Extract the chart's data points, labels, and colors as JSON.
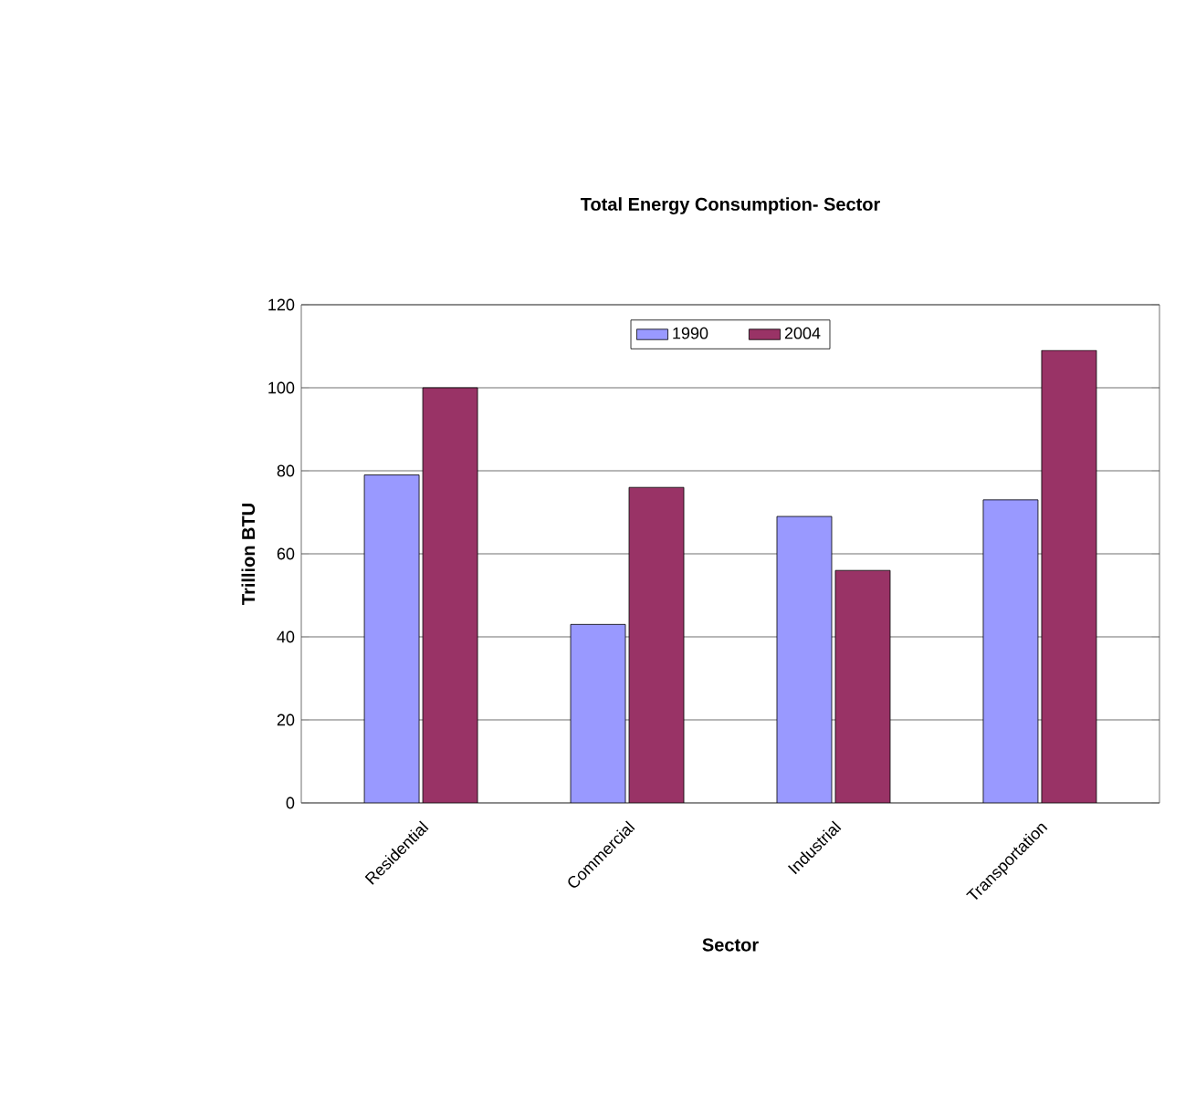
{
  "chart_data": {
    "type": "bar",
    "title": "Total Energy Consumption-  Sector",
    "xlabel": "Sector",
    "ylabel": "Trillion BTU",
    "categories": [
      "Residential",
      "Commercial",
      "Industrial",
      "Transportation"
    ],
    "series": [
      {
        "name": "1990",
        "color": "#9999ff",
        "values": [
          79,
          43,
          69,
          73
        ]
      },
      {
        "name": "2004",
        "color": "#993366",
        "values": [
          100,
          76,
          56,
          109
        ]
      }
    ],
    "ylim": [
      0,
      120
    ],
    "yticks": [
      0,
      20,
      40,
      60,
      80,
      100,
      120
    ],
    "grid": "y",
    "legend": "top"
  }
}
